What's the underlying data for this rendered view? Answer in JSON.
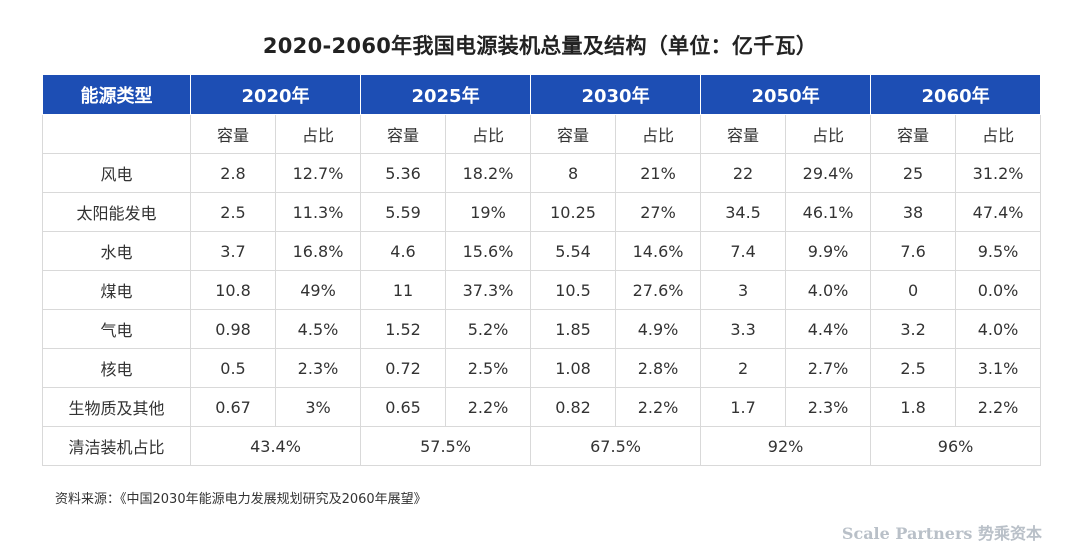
{
  "title": "2020-2060年我国电源装机总量及结构（单位：亿千瓦）",
  "header": {
    "type_label": "能源类型",
    "years": [
      "2020年",
      "2025年",
      "2030年",
      "2050年",
      "2060年"
    ]
  },
  "subheader": {
    "capacity": "容量",
    "share": "占比"
  },
  "rows": [
    {
      "type": "风电",
      "values": [
        "2.8",
        "12.7%",
        "5.36",
        "18.2%",
        "8",
        "21%",
        "22",
        "29.4%",
        "25",
        "31.2%"
      ]
    },
    {
      "type": "太阳能发电",
      "values": [
        "2.5",
        "11.3%",
        "5.59",
        "19%",
        "10.25",
        "27%",
        "34.5",
        "46.1%",
        "38",
        "47.4%"
      ]
    },
    {
      "type": "水电",
      "values": [
        "3.7",
        "16.8%",
        "4.6",
        "15.6%",
        "5.54",
        "14.6%",
        "7.4",
        "9.9%",
        "7.6",
        "9.5%"
      ]
    },
    {
      "type": "煤电",
      "values": [
        "10.8",
        "49%",
        "11",
        "37.3%",
        "10.5",
        "27.6%",
        "3",
        "4.0%",
        "0",
        "0.0%"
      ]
    },
    {
      "type": "气电",
      "values": [
        "0.98",
        "4.5%",
        "1.52",
        "5.2%",
        "1.85",
        "4.9%",
        "3.3",
        "4.4%",
        "3.2",
        "4.0%"
      ]
    },
    {
      "type": "核电",
      "values": [
        "0.5",
        "2.3%",
        "0.72",
        "2.5%",
        "1.08",
        "2.8%",
        "2",
        "2.7%",
        "2.5",
        "3.1%"
      ]
    },
    {
      "type": "生物质及其他",
      "values": [
        "0.67",
        "3%",
        "0.65",
        "2.2%",
        "0.82",
        "2.2%",
        "1.7",
        "2.3%",
        "1.8",
        "2.2%"
      ]
    }
  ],
  "clean_row": {
    "label": "清洁装机占比",
    "values": [
      "43.4%",
      "57.5%",
      "67.5%",
      "92%",
      "96%"
    ]
  },
  "source": "资料来源：《中国2030年能源电力发展规划研究及2060年展望》",
  "watermark": "Scale Partners 势乘资本"
}
